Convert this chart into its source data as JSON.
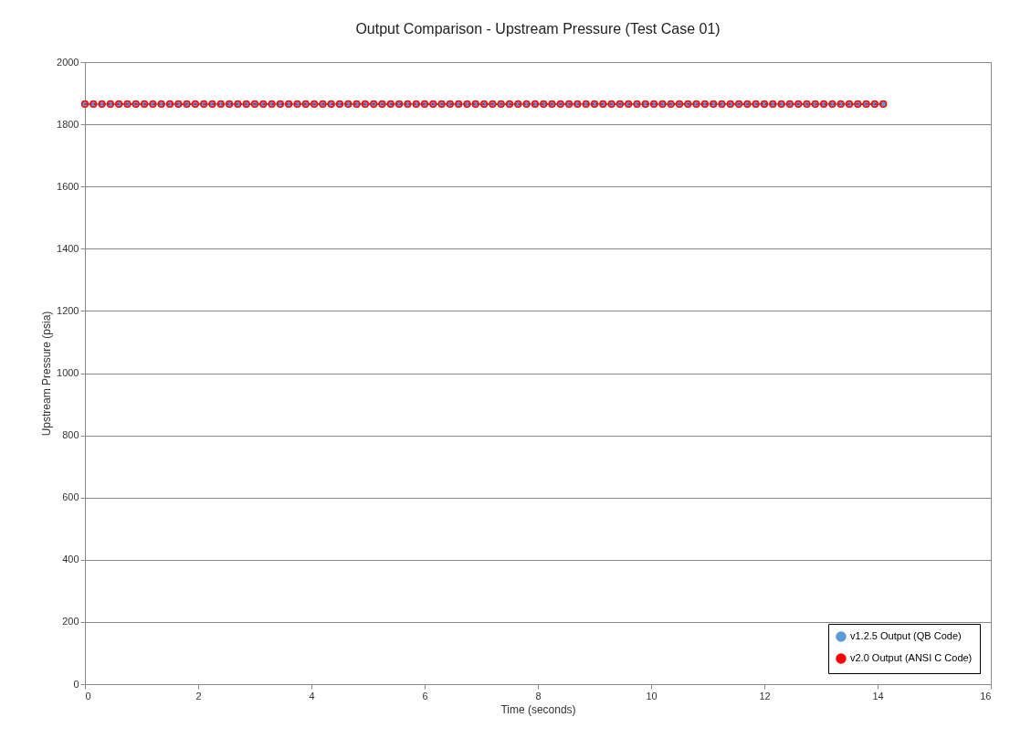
{
  "chart_data": {
    "type": "line",
    "title": "Output Comparison - Upstream Pressure (Test Case 01)",
    "xlabel": "Time (seconds)",
    "ylabel": "Upstream Pressure (psia)",
    "x": [
      0,
      0.15,
      0.3,
      0.45,
      0.6,
      0.75,
      0.9,
      1.05,
      1.2,
      1.35,
      1.5,
      1.65,
      1.8,
      1.95,
      2.1,
      2.25,
      2.4,
      2.55,
      2.7,
      2.85,
      3,
      3.15,
      3.3,
      3.45,
      3.6,
      3.75,
      3.9,
      4.05,
      4.2,
      4.35,
      4.5,
      4.65,
      4.8,
      4.95,
      5.1,
      5.25,
      5.4,
      5.55,
      5.7,
      5.85,
      6,
      6.15,
      6.3,
      6.45,
      6.6,
      6.75,
      6.9,
      7.05,
      7.2,
      7.35,
      7.5,
      7.65,
      7.8,
      7.95,
      8.1,
      8.25,
      8.4,
      8.55,
      8.7,
      8.85,
      9,
      9.15,
      9.3,
      9.45,
      9.6,
      9.75,
      9.9,
      10.05,
      10.2,
      10.35,
      10.5,
      10.65,
      10.8,
      10.95,
      11.1,
      11.25,
      11.4,
      11.55,
      11.7,
      11.85,
      12,
      12.15,
      12.3,
      12.45,
      12.6,
      12.75,
      12.9,
      13.05,
      13.2,
      13.35,
      13.5,
      13.65,
      13.8,
      13.95,
      14.1
    ],
    "series": [
      {
        "name": "v1.2.5 Output (QB Code)",
        "color": "#5b9bd5",
        "line_style": "solid",
        "marker": "circle",
        "values": [
          1865,
          1865,
          1865,
          1865,
          1865,
          1865,
          1865,
          1865,
          1865,
          1865,
          1865,
          1865,
          1865,
          1865,
          1865,
          1865,
          1865,
          1865,
          1865,
          1865,
          1865,
          1865,
          1865,
          1865,
          1865,
          1865,
          1865,
          1865,
          1865,
          1865,
          1865,
          1865,
          1865,
          1865,
          1865,
          1865,
          1865,
          1865,
          1865,
          1865,
          1865,
          1865,
          1865,
          1865,
          1865,
          1865,
          1865,
          1865,
          1865,
          1865,
          1865,
          1865,
          1865,
          1865,
          1865,
          1865,
          1865,
          1865,
          1865,
          1865,
          1865,
          1865,
          1865,
          1865,
          1865,
          1865,
          1865,
          1865,
          1865,
          1865,
          1865,
          1865,
          1865,
          1865,
          1865,
          1865,
          1865,
          1865,
          1865,
          1865,
          1865,
          1865,
          1865,
          1865,
          1865,
          1865,
          1865,
          1865,
          1865,
          1865,
          1865,
          1865,
          1865,
          1865,
          1865
        ]
      },
      {
        "name": "v2.0 Output (ANSI C Code)",
        "color": "#ff0000",
        "line_style": "dotted",
        "marker": "circle",
        "values": [
          1865,
          1865,
          1865,
          1865,
          1865,
          1865,
          1865,
          1865,
          1865,
          1865,
          1865,
          1865,
          1865,
          1865,
          1865,
          1865,
          1865,
          1865,
          1865,
          1865,
          1865,
          1865,
          1865,
          1865,
          1865,
          1865,
          1865,
          1865,
          1865,
          1865,
          1865,
          1865,
          1865,
          1865,
          1865,
          1865,
          1865,
          1865,
          1865,
          1865,
          1865,
          1865,
          1865,
          1865,
          1865,
          1865,
          1865,
          1865,
          1865,
          1865,
          1865,
          1865,
          1865,
          1865,
          1865,
          1865,
          1865,
          1865,
          1865,
          1865,
          1865,
          1865,
          1865,
          1865,
          1865,
          1865,
          1865,
          1865,
          1865,
          1865,
          1865,
          1865,
          1865,
          1865,
          1865,
          1865,
          1865,
          1865,
          1865,
          1865,
          1865,
          1865,
          1865,
          1865,
          1865,
          1865,
          1865,
          1865,
          1865,
          1865,
          1865,
          1865,
          1865,
          1865,
          1865
        ]
      }
    ],
    "xlim": [
      0,
      16
    ],
    "xticks": [
      0,
      2,
      4,
      6,
      8,
      10,
      12,
      14,
      16
    ],
    "ylim": [
      0,
      2000
    ],
    "yticks": [
      0,
      200,
      400,
      600,
      800,
      1000,
      1200,
      1400,
      1600,
      1800,
      2000
    ],
    "grid": "y",
    "legend": "bottom right"
  }
}
